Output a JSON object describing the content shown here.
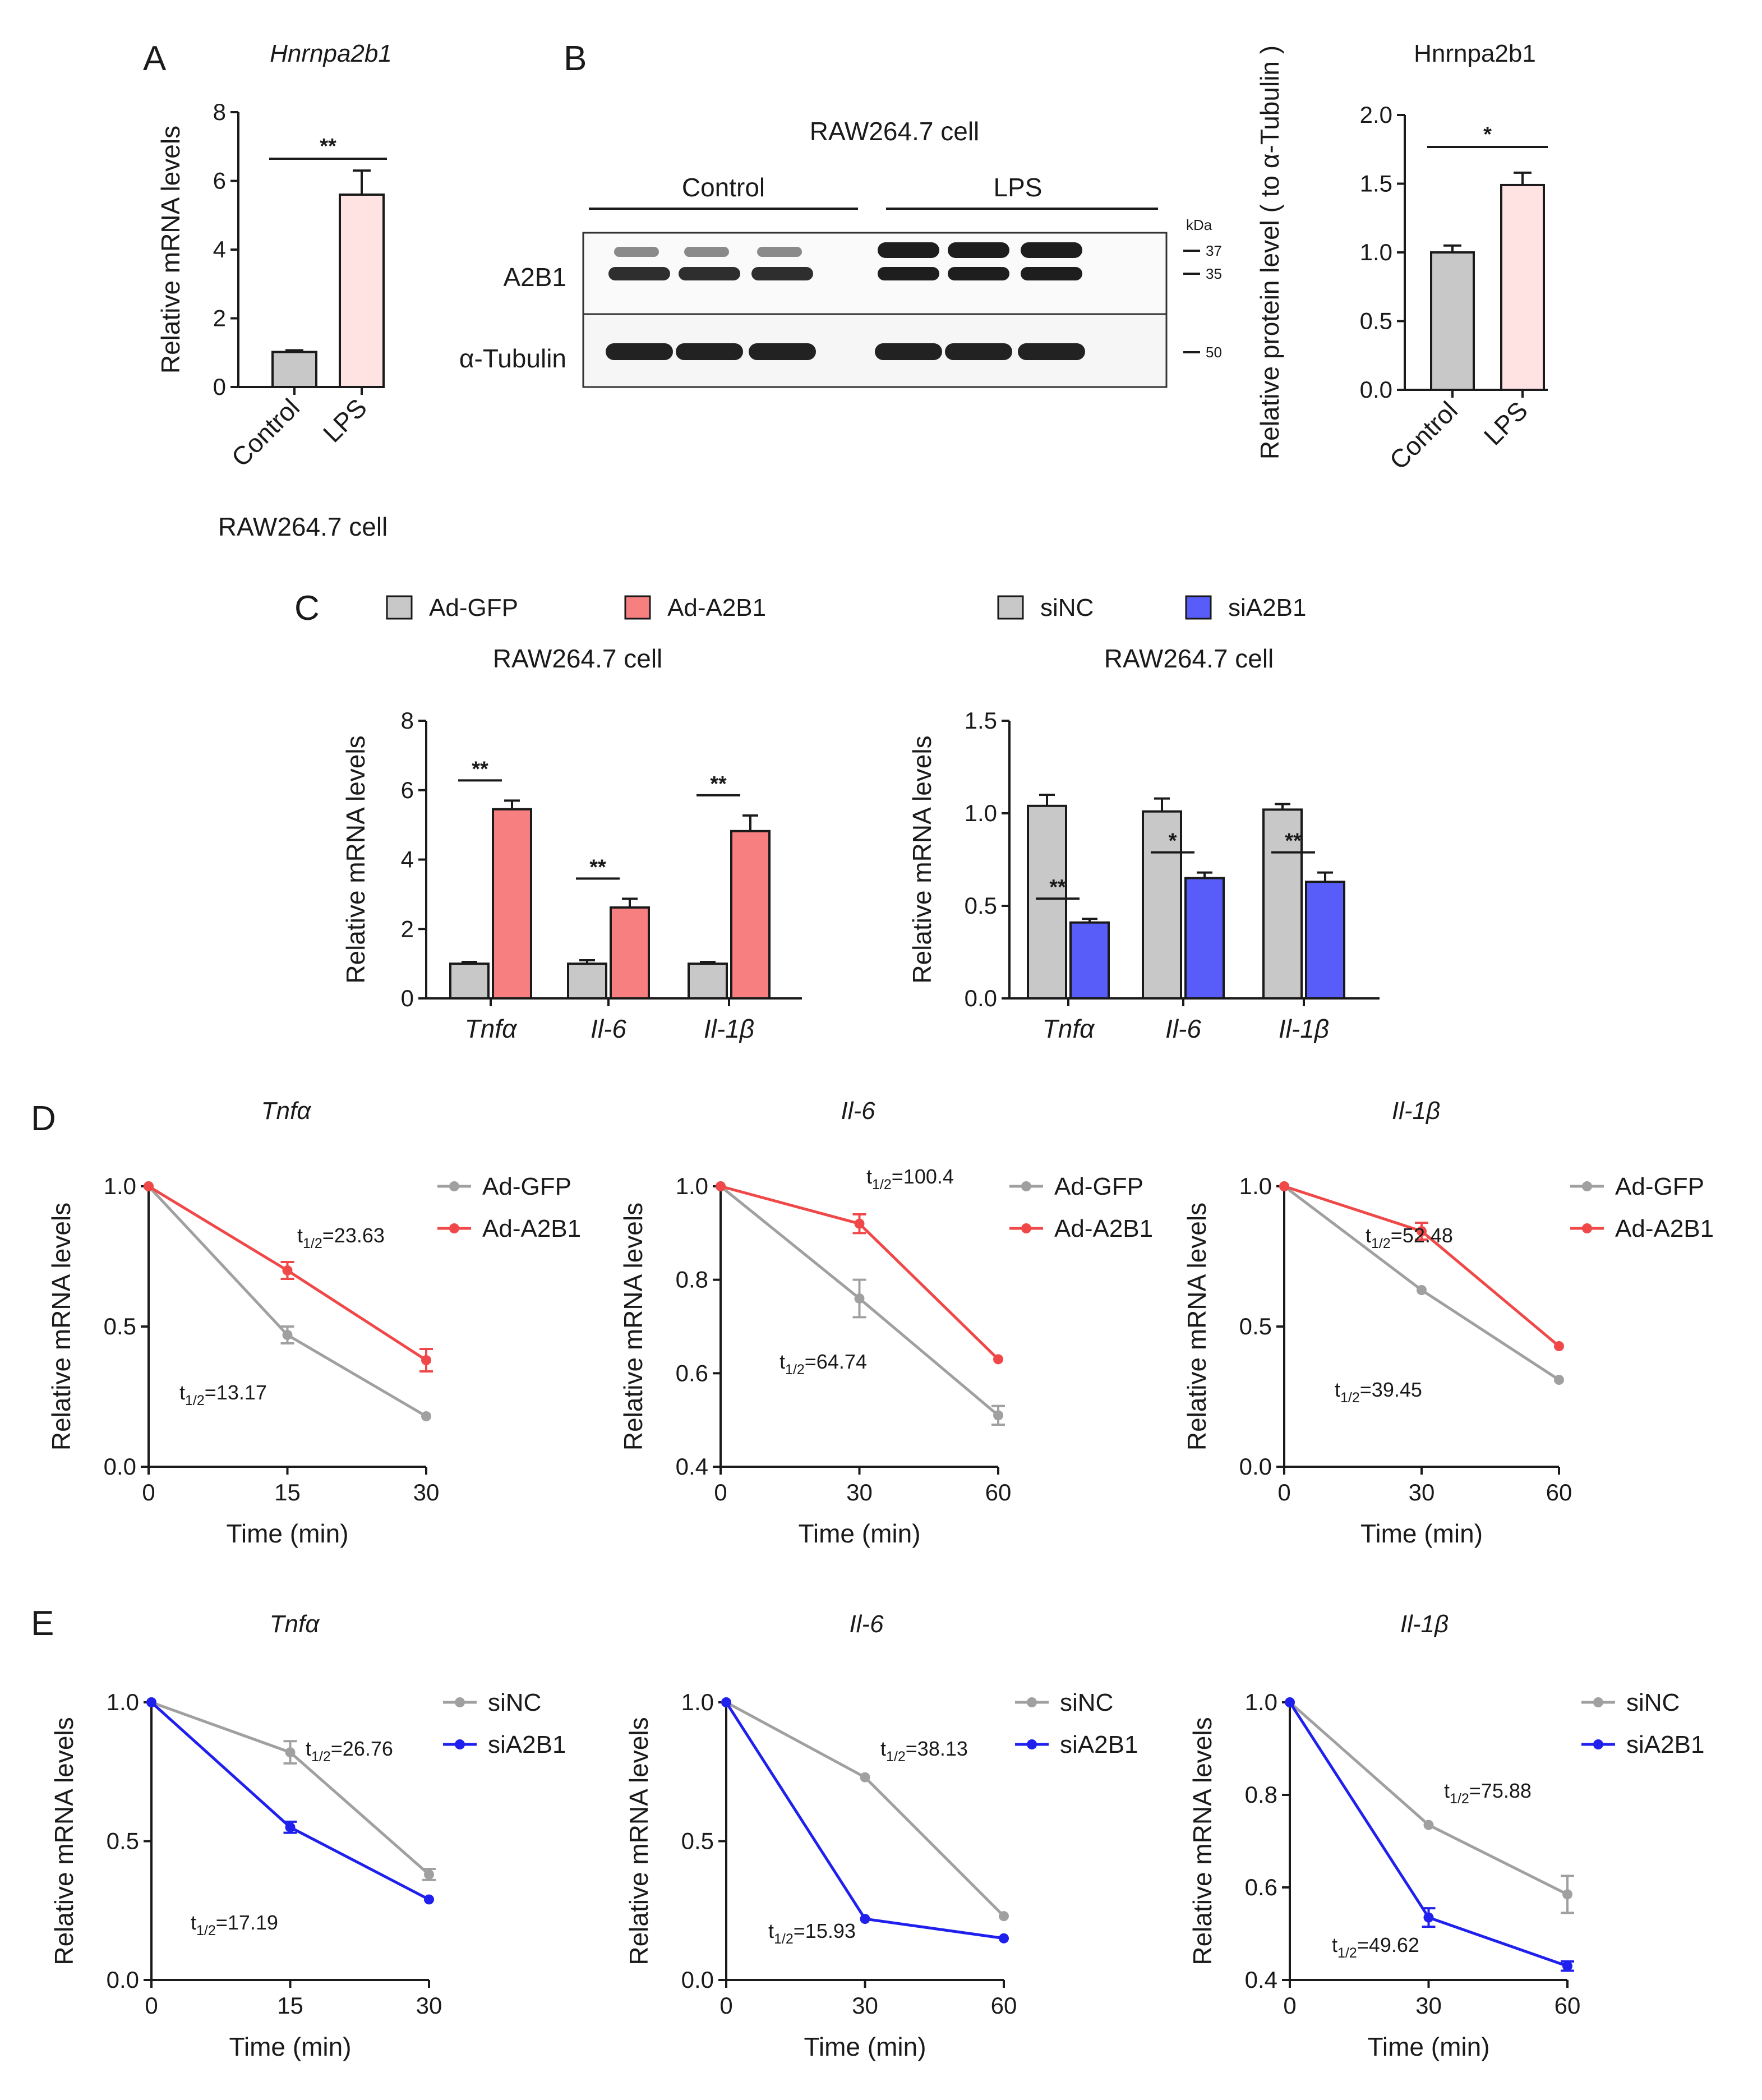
{
  "colors": {
    "gray": "#c8c8c8",
    "pink": "#ffe3e3",
    "red": "#f87f80",
    "blue": "#585cf8",
    "line_gray": "#a0a0a0",
    "line_red": "#f04848",
    "line_blue": "#2020ee"
  },
  "panels": {
    "A": {
      "label": "A",
      "title": "Hnrnpa2b1",
      "footer": "RAW264.7 cell"
    },
    "B": {
      "label": "B",
      "blot_title": "RAW264.7 cell",
      "group_control": "Control",
      "group_lps": "LPS",
      "kda": "kDa",
      "row_a2b1": "A2B1",
      "row_tubulin": "α-Tubulin",
      "mw": [
        "37",
        "35",
        "50"
      ],
      "bar_title": "Hnrnpa2b1"
    },
    "C": {
      "label": "C",
      "subtitle_left": "RAW264.7 cell",
      "subtitle_right": "RAW264.7 cell",
      "legend_left": [
        "Ad-GFP",
        "Ad-A2B1"
      ],
      "legend_right": [
        "siNC",
        "siA2B1"
      ]
    },
    "D": {
      "label": "D",
      "titles": [
        "Tnfα",
        "Il-6",
        "Il-1β"
      ]
    },
    "E": {
      "label": "E",
      "titles": [
        "Tnfα",
        "Il-6",
        "Il-1β"
      ]
    }
  },
  "chart_data": [
    {
      "id": "A",
      "type": "bar",
      "title": "Hnrnpa2b1",
      "categories": [
        "Control",
        "LPS"
      ],
      "values": [
        1.02,
        5.6
      ],
      "errors": [
        0.05,
        0.7
      ],
      "colors": [
        "#c8c8c8",
        "#ffe3e3"
      ],
      "ylabel": "Relative mRNA levels",
      "ylim": [
        0,
        8
      ],
      "yticks": [
        "0",
        "2",
        "4",
        "6",
        "8"
      ],
      "significance": [
        {
          "label": "**",
          "between": [
            0,
            1
          ]
        }
      ],
      "xlabel": "RAW264.7 cell"
    },
    {
      "id": "B",
      "type": "bar",
      "title": "Hnrnpa2b1",
      "categories": [
        "Control",
        "LPS"
      ],
      "values": [
        1.0,
        1.49
      ],
      "errors": [
        0.05,
        0.09
      ],
      "colors": [
        "#c8c8c8",
        "#ffe3e3"
      ],
      "ylabel": "Relative protein level ( to α-Tubulin )",
      "ylim": [
        0,
        2.0
      ],
      "yticks": [
        "0.0",
        "0.5",
        "1.0",
        "1.5",
        "2.0"
      ],
      "significance": [
        {
          "label": "*",
          "between": [
            0,
            1
          ]
        }
      ]
    },
    {
      "id": "C-left",
      "type": "bar",
      "title": "RAW264.7 cell",
      "categories": [
        "Tnfα",
        "Il-6",
        "Il-1β"
      ],
      "series": [
        {
          "name": "Ad-GFP",
          "values": [
            1.0,
            1.0,
            1.0
          ],
          "errors": [
            0.05,
            0.1,
            0.05
          ],
          "color": "#c8c8c8"
        },
        {
          "name": "Ad-A2B1",
          "values": [
            5.45,
            2.62,
            4.82
          ],
          "errors": [
            0.25,
            0.25,
            0.45
          ],
          "color": "#f87f80"
        }
      ],
      "ylabel": "Relative mRNA levels",
      "ylim": [
        0,
        8
      ],
      "yticks": [
        "0",
        "2",
        "4",
        "6",
        "8"
      ],
      "significance": [
        "**",
        "**",
        "**"
      ]
    },
    {
      "id": "C-right",
      "type": "bar",
      "title": "RAW264.7 cell",
      "categories": [
        "Tnfα",
        "Il-6",
        "Il-1β"
      ],
      "series": [
        {
          "name": "siNC",
          "values": [
            1.04,
            1.01,
            1.02
          ],
          "errors": [
            0.06,
            0.07,
            0.03
          ],
          "color": "#c8c8c8"
        },
        {
          "name": "siA2B1",
          "values": [
            0.41,
            0.65,
            0.63
          ],
          "errors": [
            0.02,
            0.03,
            0.05
          ],
          "color": "#585cf8"
        }
      ],
      "ylabel": "Relative mRNA levels",
      "ylim": [
        0,
        1.5
      ],
      "yticks": [
        "0.0",
        "0.5",
        "1.0",
        "1.5"
      ],
      "significance": [
        "**",
        "*",
        "**"
      ]
    },
    {
      "id": "D-Tnfa",
      "type": "line",
      "title": "Tnfα",
      "x": [
        0,
        15,
        30
      ],
      "series": [
        {
          "name": "Ad-GFP",
          "values": [
            1.0,
            0.47,
            0.18
          ],
          "errors": [
            0,
            0.03,
            0
          ],
          "color": "#a0a0a0"
        },
        {
          "name": "Ad-A2B1",
          "values": [
            1.0,
            0.7,
            0.38
          ],
          "errors": [
            0,
            0.03,
            0.04
          ],
          "color": "#f04848"
        }
      ],
      "xlabel": "Time (min)",
      "ylabel": "Relative mRNA levels",
      "xlim": [
        0,
        30
      ],
      "ylim": [
        0,
        1.0
      ],
      "xticks": [
        "0",
        "15",
        "30"
      ],
      "yticks": [
        "0.0",
        "0.5",
        "1.0"
      ],
      "annotations": [
        {
          "main": "t",
          "sub": "1/2",
          "rest": "=23.63"
        },
        {
          "main": "t",
          "sub": "1/2",
          "rest": "=13.17"
        }
      ]
    },
    {
      "id": "D-Il6",
      "type": "line",
      "title": "Il-6",
      "x": [
        0,
        30,
        60
      ],
      "series": [
        {
          "name": "Ad-GFP",
          "values": [
            1.0,
            0.76,
            0.51
          ],
          "errors": [
            0,
            0.04,
            0.02
          ],
          "color": "#a0a0a0"
        },
        {
          "name": "Ad-A2B1",
          "values": [
            1.0,
            0.92,
            0.63
          ],
          "errors": [
            0,
            0.02,
            0
          ],
          "color": "#f04848"
        }
      ],
      "xlabel": "Time (min)",
      "ylabel": "Relative mRNA levels",
      "xlim": [
        0,
        60
      ],
      "ylim": [
        0.4,
        1.0
      ],
      "xticks": [
        "0",
        "30",
        "60"
      ],
      "yticks": [
        "0.4",
        "0.6",
        "0.8",
        "1.0"
      ],
      "annotations": [
        {
          "main": "t",
          "sub": "1/2",
          "rest": "=100.4"
        },
        {
          "main": "t",
          "sub": "1/2",
          "rest": "=64.74"
        }
      ]
    },
    {
      "id": "D-Il1b",
      "type": "line",
      "title": "Il-1β",
      "x": [
        0,
        30,
        60
      ],
      "series": [
        {
          "name": "Ad-GFP",
          "values": [
            1.0,
            0.63,
            0.31
          ],
          "errors": [
            0,
            0,
            0
          ],
          "color": "#a0a0a0"
        },
        {
          "name": "Ad-A2B1",
          "values": [
            1.0,
            0.84,
            0.43
          ],
          "errors": [
            0,
            0.03,
            0
          ],
          "color": "#f04848"
        }
      ],
      "xlabel": "Time (min)",
      "ylabel": "Relative mRNA levels",
      "xlim": [
        0,
        60
      ],
      "ylim": [
        0,
        1.0
      ],
      "xticks": [
        "0",
        "30",
        "60"
      ],
      "yticks": [
        "0.0",
        "0.5",
        "1.0"
      ],
      "annotations": [
        {
          "main": "t",
          "sub": "1/2",
          "rest": "=52.48"
        },
        {
          "main": "t",
          "sub": "1/2",
          "rest": "=39.45"
        }
      ]
    },
    {
      "id": "E-Tnfa",
      "type": "line",
      "title": "Tnfα",
      "x": [
        0,
        15,
        30
      ],
      "series": [
        {
          "name": "siNC",
          "values": [
            1.0,
            0.82,
            0.38
          ],
          "errors": [
            0,
            0.04,
            0.02
          ],
          "color": "#a0a0a0"
        },
        {
          "name": "siA2B1",
          "values": [
            1.0,
            0.55,
            0.29
          ],
          "errors": [
            0,
            0.02,
            0
          ],
          "color": "#2020ee"
        }
      ],
      "xlabel": "Time (min)",
      "ylabel": "Relative mRNA levels",
      "xlim": [
        0,
        30
      ],
      "ylim": [
        0,
        1.0
      ],
      "xticks": [
        "0",
        "15",
        "30"
      ],
      "yticks": [
        "0.0",
        "0.5",
        "1.0"
      ],
      "annotations": [
        {
          "main": "t",
          "sub": "1/2",
          "rest": "=26.76"
        },
        {
          "main": "t",
          "sub": "1/2",
          "rest": "=17.19"
        }
      ]
    },
    {
      "id": "E-Il6",
      "type": "line",
      "title": "Il-6",
      "x": [
        0,
        30,
        60
      ],
      "series": [
        {
          "name": "siNC",
          "values": [
            1.0,
            0.73,
            0.23
          ],
          "errors": [
            0,
            0,
            0
          ],
          "color": "#a0a0a0"
        },
        {
          "name": "siA2B1",
          "values": [
            1.0,
            0.22,
            0.15
          ],
          "errors": [
            0,
            0,
            0
          ],
          "color": "#2020ee"
        }
      ],
      "xlabel": "Time (min)",
      "ylabel": "Relative mRNA levels",
      "xlim": [
        0,
        60
      ],
      "ylim": [
        0,
        1.0
      ],
      "xticks": [
        "0",
        "30",
        "60"
      ],
      "yticks": [
        "0.0",
        "0.5",
        "1.0"
      ],
      "annotations": [
        {
          "main": "t",
          "sub": "1/2",
          "rest": "=38.13"
        },
        {
          "main": "t",
          "sub": "1/2",
          "rest": "=15.93"
        }
      ]
    },
    {
      "id": "E-Il1b",
      "type": "line",
      "title": "Il-1β",
      "x": [
        0,
        30,
        60
      ],
      "series": [
        {
          "name": "siNC",
          "values": [
            1.0,
            0.735,
            0.585
          ],
          "errors": [
            0,
            0,
            0.04
          ],
          "color": "#a0a0a0"
        },
        {
          "name": "siA2B1",
          "values": [
            1.0,
            0.535,
            0.43
          ],
          "errors": [
            0,
            0.02,
            0.01
          ],
          "color": "#2020ee"
        }
      ],
      "xlabel": "Time (min)",
      "ylabel": "Relative mRNA levels",
      "xlim": [
        0,
        60
      ],
      "ylim": [
        0.4,
        1.0
      ],
      "xticks": [
        "0",
        "30",
        "60"
      ],
      "yticks": [
        "0.4",
        "0.6",
        "0.8",
        "1.0"
      ],
      "annotations": [
        {
          "main": "t",
          "sub": "1/2",
          "rest": "=75.88"
        },
        {
          "main": "t",
          "sub": "1/2",
          "rest": "=49.62"
        }
      ]
    }
  ]
}
